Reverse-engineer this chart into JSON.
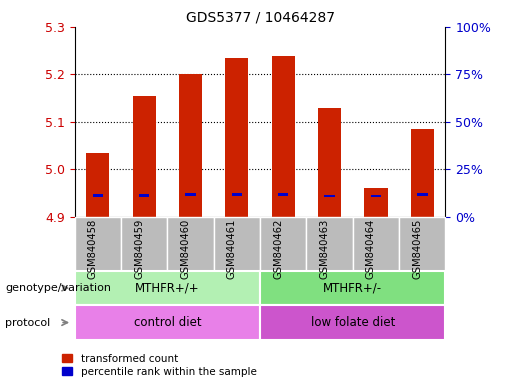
{
  "title": "GDS5377 / 10464287",
  "samples": [
    "GSM840458",
    "GSM840459",
    "GSM840460",
    "GSM840461",
    "GSM840462",
    "GSM840463",
    "GSM840464",
    "GSM840465"
  ],
  "red_values": [
    5.035,
    5.155,
    5.2,
    5.235,
    5.238,
    5.13,
    4.96,
    5.085
  ],
  "blue_values": [
    4.945,
    4.945,
    4.948,
    4.948,
    4.948,
    4.944,
    4.944,
    4.947
  ],
  "ymin": 4.9,
  "ymax": 5.3,
  "yticks": [
    4.9,
    5.0,
    5.1,
    5.2,
    5.3
  ],
  "y2ticks": [
    0,
    25,
    50,
    75,
    100
  ],
  "y2labels": [
    "0%",
    "25%",
    "50%",
    "75%",
    "100%"
  ],
  "bar_color": "#cc2200",
  "blue_color": "#0000cc",
  "bar_bottom": 4.9,
  "groups": [
    {
      "label": "MTHFR+/+",
      "start": 0,
      "end": 4,
      "color": "#b3f0b3"
    },
    {
      "label": "MTHFR+/-",
      "start": 4,
      "end": 8,
      "color": "#80e080"
    }
  ],
  "protocols": [
    {
      "label": "control diet",
      "start": 0,
      "end": 4,
      "color": "#e880e8"
    },
    {
      "label": "low folate diet",
      "start": 4,
      "end": 8,
      "color": "#cc55cc"
    }
  ],
  "genotype_label": "genotype/variation",
  "protocol_label": "protocol",
  "legend_red": "transformed count",
  "legend_blue": "percentile rank within the sample",
  "left_color": "#cc0000",
  "right_color": "#0000cc",
  "title_color": "#000000",
  "bg_color": "#ffffff",
  "tick_area_color": "#bbbbbb",
  "bar_width": 0.5,
  "grid_lines": [
    5.0,
    5.1,
    5.2
  ]
}
